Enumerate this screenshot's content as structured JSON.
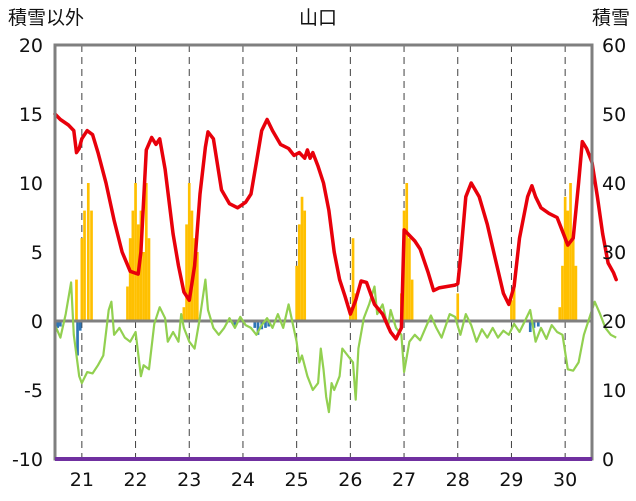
{
  "chart_data": {
    "type": "line+bar",
    "title": "山口",
    "ylabel_left": "積雪以外",
    "ylabel_right": "積雪",
    "ylim_left": [
      -10,
      20
    ],
    "yticks_left": [
      20,
      15,
      10,
      5,
      0,
      -5,
      -10
    ],
    "ylim_right": [
      0,
      60
    ],
    "yticks_right": [
      60,
      50,
      40,
      30,
      20,
      10,
      0
    ],
    "xlim": [
      20.5,
      30.5
    ],
    "categories": [
      "21",
      "22",
      "23",
      "24",
      "25",
      "26",
      "27",
      "28",
      "29",
      "30"
    ],
    "grid": "vertical dashed at each day",
    "colors": {
      "temp_red": "#e8000b",
      "green": "#92d050",
      "snow_bar": "#ffc000",
      "blue_bar": "#2e75b6",
      "frame": "#7f7f7f",
      "zero_line": "#808080",
      "bottom_line": "#7030a0"
    },
    "series": [
      {
        "name": "red-line",
        "axis": "left",
        "points": [
          [
            20.5,
            15
          ],
          [
            20.6,
            14.6
          ],
          [
            20.75,
            14.2
          ],
          [
            20.85,
            13.8
          ],
          [
            20.9,
            12.2
          ],
          [
            20.95,
            12.5
          ],
          [
            21.0,
            13.2
          ],
          [
            21.1,
            13.8
          ],
          [
            21.2,
            13.5
          ],
          [
            21.3,
            12.2
          ],
          [
            21.45,
            10
          ],
          [
            21.6,
            7.3
          ],
          [
            21.75,
            5
          ],
          [
            21.9,
            3.6
          ],
          [
            22.05,
            3.4
          ],
          [
            22.1,
            5
          ],
          [
            22.2,
            12.4
          ],
          [
            22.3,
            13.3
          ],
          [
            22.38,
            12.8
          ],
          [
            22.45,
            13.2
          ],
          [
            22.55,
            11
          ],
          [
            22.7,
            6.3
          ],
          [
            22.8,
            4
          ],
          [
            22.9,
            2.1
          ],
          [
            23.0,
            1.5
          ],
          [
            23.1,
            4
          ],
          [
            23.2,
            9.2
          ],
          [
            23.3,
            12.6
          ],
          [
            23.35,
            13.7
          ],
          [
            23.45,
            13.2
          ],
          [
            23.6,
            9.5
          ],
          [
            23.75,
            8.5
          ],
          [
            23.9,
            8.2
          ],
          [
            24.05,
            8.6
          ],
          [
            24.15,
            9.2
          ],
          [
            24.25,
            11.5
          ],
          [
            24.35,
            13.8
          ],
          [
            24.45,
            14.6
          ],
          [
            24.55,
            13.8
          ],
          [
            24.7,
            12.8
          ],
          [
            24.85,
            12.5
          ],
          [
            24.95,
            12
          ],
          [
            25.05,
            12.2
          ],
          [
            25.15,
            11.8
          ],
          [
            25.2,
            12.4
          ],
          [
            25.25,
            11.8
          ],
          [
            25.3,
            12.2
          ],
          [
            25.4,
            11.2
          ],
          [
            25.5,
            10
          ],
          [
            25.6,
            8
          ],
          [
            25.7,
            5
          ],
          [
            25.8,
            3
          ],
          [
            25.9,
            1.8
          ],
          [
            26.0,
            0.5
          ],
          [
            26.1,
            1.5
          ],
          [
            26.2,
            2.9
          ],
          [
            26.3,
            2.8
          ],
          [
            26.45,
            1.2
          ],
          [
            26.6,
            0.5
          ],
          [
            26.75,
            -0.8
          ],
          [
            26.85,
            -1.3
          ],
          [
            26.95,
            -0.5
          ],
          [
            27.0,
            6.6
          ],
          [
            27.1,
            6.2
          ],
          [
            27.2,
            5.8
          ],
          [
            27.3,
            5.2
          ],
          [
            27.45,
            3.5
          ],
          [
            27.55,
            2.2
          ],
          [
            27.65,
            2.4
          ],
          [
            27.8,
            2.5
          ],
          [
            27.95,
            2.6
          ],
          [
            28.0,
            2.7
          ],
          [
            28.05,
            4.5
          ],
          [
            28.15,
            9
          ],
          [
            28.25,
            10
          ],
          [
            28.4,
            9
          ],
          [
            28.55,
            7
          ],
          [
            28.7,
            4.5
          ],
          [
            28.85,
            2
          ],
          [
            28.95,
            1.2
          ],
          [
            29.05,
            2.5
          ],
          [
            29.15,
            6
          ],
          [
            29.3,
            9
          ],
          [
            29.38,
            9.8
          ],
          [
            29.45,
            9
          ],
          [
            29.55,
            8.2
          ],
          [
            29.7,
            7.8
          ],
          [
            29.85,
            7.5
          ],
          [
            29.95,
            6.5
          ],
          [
            30.05,
            5.5
          ],
          [
            30.15,
            6
          ],
          [
            30.25,
            10
          ],
          [
            30.32,
            13
          ],
          [
            30.4,
            12.5
          ],
          [
            30.5,
            11.5
          ],
          [
            30.6,
            9
          ],
          [
            30.7,
            6.3
          ],
          [
            30.8,
            4.2
          ],
          [
            30.9,
            3.5
          ],
          [
            30.95,
            3
          ]
        ]
      },
      {
        "name": "green-line",
        "axis": "left",
        "points": [
          [
            20.5,
            -0.3
          ],
          [
            20.6,
            -1.2
          ],
          [
            20.7,
            0.5
          ],
          [
            20.8,
            2.8
          ],
          [
            20.85,
            -1
          ],
          [
            20.95,
            -4
          ],
          [
            21.0,
            -4.5
          ],
          [
            21.1,
            -3.7
          ],
          [
            21.2,
            -3.8
          ],
          [
            21.3,
            -3.2
          ],
          [
            21.4,
            -2.5
          ],
          [
            21.5,
            0.8
          ],
          [
            21.55,
            1.4
          ],
          [
            21.6,
            -1
          ],
          [
            21.7,
            -0.5
          ],
          [
            21.8,
            -1.2
          ],
          [
            21.9,
            -1.5
          ],
          [
            22.0,
            -0.8
          ],
          [
            22.1,
            -4
          ],
          [
            22.15,
            -3.2
          ],
          [
            22.25,
            -3.5
          ],
          [
            22.35,
            -0.2
          ],
          [
            22.45,
            1
          ],
          [
            22.55,
            0.2
          ],
          [
            22.6,
            -1.5
          ],
          [
            22.7,
            -0.8
          ],
          [
            22.8,
            -1.5
          ],
          [
            22.85,
            0.5
          ],
          [
            22.9,
            -0.5
          ],
          [
            23.0,
            -1.5
          ],
          [
            23.1,
            -2
          ],
          [
            23.2,
            0.3
          ],
          [
            23.3,
            3.0
          ],
          [
            23.35,
            0.8
          ],
          [
            23.45,
            -0.5
          ],
          [
            23.55,
            -1
          ],
          [
            23.65,
            -0.5
          ],
          [
            23.75,
            0.2
          ],
          [
            23.85,
            -0.5
          ],
          [
            23.95,
            0.3
          ],
          [
            24.05,
            -0.3
          ],
          [
            24.15,
            -0.5
          ],
          [
            24.25,
            -1
          ],
          [
            24.35,
            -0.3
          ],
          [
            24.45,
            0.2
          ],
          [
            24.55,
            -0.5
          ],
          [
            24.65,
            0.5
          ],
          [
            24.75,
            -0.5
          ],
          [
            24.85,
            1.2
          ],
          [
            25.0,
            -1.5
          ],
          [
            25.05,
            -3
          ],
          [
            25.1,
            -2.5
          ],
          [
            25.2,
            -4
          ],
          [
            25.3,
            -5
          ],
          [
            25.4,
            -4.5
          ],
          [
            25.45,
            -2
          ],
          [
            25.5,
            -3.5
          ],
          [
            25.55,
            -5.5
          ],
          [
            25.6,
            -6.6
          ],
          [
            25.65,
            -4.5
          ],
          [
            25.7,
            -5
          ],
          [
            25.8,
            -4
          ],
          [
            25.85,
            -2
          ],
          [
            25.95,
            -2.5
          ],
          [
            26.05,
            -3
          ],
          [
            26.1,
            -5.7
          ],
          [
            26.15,
            -2
          ],
          [
            26.25,
            0.2
          ],
          [
            26.35,
            1.2
          ],
          [
            26.45,
            2.5
          ],
          [
            26.5,
            0.5
          ],
          [
            26.6,
            1.2
          ],
          [
            26.7,
            -0.5
          ],
          [
            26.75,
            0.8
          ],
          [
            26.85,
            -0.5
          ],
          [
            26.95,
            -1
          ],
          [
            27.0,
            -3.7
          ],
          [
            27.1,
            -1.5
          ],
          [
            27.2,
            -1
          ],
          [
            27.3,
            -1.4
          ],
          [
            27.4,
            -0.5
          ],
          [
            27.5,
            0.4
          ],
          [
            27.6,
            -0.5
          ],
          [
            27.7,
            -1.2
          ],
          [
            27.85,
            0.5
          ],
          [
            27.95,
            0.3
          ],
          [
            28.05,
            -1
          ],
          [
            28.15,
            0.5
          ],
          [
            28.25,
            -0.3
          ],
          [
            28.35,
            -1.5
          ],
          [
            28.45,
            -0.6
          ],
          [
            28.55,
            -1.2
          ],
          [
            28.65,
            -0.5
          ],
          [
            28.75,
            -1.2
          ],
          [
            28.85,
            -0.7
          ],
          [
            28.95,
            -1
          ],
          [
            29.05,
            -0.2
          ],
          [
            29.15,
            -0.8
          ],
          [
            29.25,
            0
          ],
          [
            29.35,
            0.8
          ],
          [
            29.45,
            -1.5
          ],
          [
            29.55,
            -0.5
          ],
          [
            29.65,
            -1.3
          ],
          [
            29.75,
            -0.3
          ],
          [
            29.85,
            -0.8
          ],
          [
            29.95,
            -1
          ],
          [
            30.05,
            -3.5
          ],
          [
            30.15,
            -3.6
          ],
          [
            30.25,
            -3
          ],
          [
            30.35,
            -1
          ],
          [
            30.45,
            0.2
          ],
          [
            30.55,
            1.4
          ],
          [
            30.65,
            0.5
          ],
          [
            30.75,
            -0.5
          ],
          [
            30.85,
            -1
          ],
          [
            30.95,
            -1.2
          ]
        ]
      },
      {
        "name": "snow-bars",
        "axis": "right",
        "type": "bar",
        "bars": [
          [
            20.9,
            26
          ],
          [
            21.0,
            32
          ],
          [
            21.05,
            36
          ],
          [
            21.12,
            40
          ],
          [
            21.18,
            36
          ],
          [
            21.85,
            25
          ],
          [
            21.9,
            32
          ],
          [
            21.95,
            36
          ],
          [
            22.0,
            40
          ],
          [
            22.05,
            34
          ],
          [
            22.1,
            36
          ],
          [
            22.15,
            30
          ],
          [
            22.2,
            40
          ],
          [
            22.25,
            32
          ],
          [
            22.9,
            22
          ],
          [
            22.95,
            34
          ],
          [
            23.0,
            40
          ],
          [
            23.05,
            36
          ],
          [
            23.1,
            32
          ],
          [
            23.15,
            30
          ],
          [
            25.0,
            28
          ],
          [
            25.05,
            34
          ],
          [
            25.1,
            38
          ],
          [
            25.15,
            36
          ],
          [
            26.0,
            22
          ],
          [
            26.05,
            32
          ],
          [
            26.1,
            24
          ],
          [
            26.95,
            24
          ],
          [
            27.0,
            36
          ],
          [
            27.05,
            40
          ],
          [
            27.1,
            32
          ],
          [
            27.15,
            26
          ],
          [
            28.0,
            24
          ],
          [
            29.0,
            23
          ],
          [
            29.05,
            25
          ],
          [
            29.9,
            22
          ],
          [
            29.95,
            28
          ],
          [
            30.0,
            38
          ],
          [
            30.05,
            36
          ],
          [
            30.1,
            40
          ],
          [
            30.15,
            32
          ],
          [
            30.2,
            28
          ]
        ]
      },
      {
        "name": "blue-bars",
        "axis": "left",
        "type": "bar",
        "bars": [
          [
            20.55,
            -0.5
          ],
          [
            20.6,
            -0.4
          ],
          [
            20.92,
            -2.5
          ],
          [
            20.97,
            -0.7
          ],
          [
            23.85,
            -0.4
          ],
          [
            24.22,
            -0.5
          ],
          [
            24.28,
            -1
          ],
          [
            24.35,
            -0.6
          ],
          [
            24.42,
            -0.5
          ],
          [
            24.48,
            -0.4
          ],
          [
            29.35,
            -0.8
          ],
          [
            29.42,
            -0.5
          ],
          [
            29.5,
            -0.4
          ]
        ]
      }
    ]
  }
}
